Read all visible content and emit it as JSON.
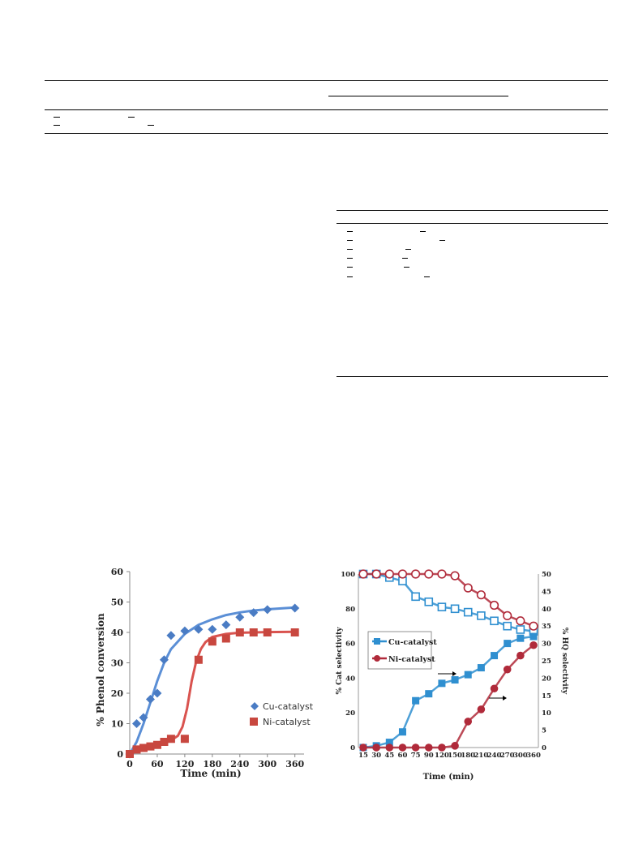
{
  "chart_data": [
    {
      "type": "scatter",
      "xlabel": "Time (min)",
      "ylabel": "% Phenol conversion",
      "xlim": [
        0,
        380
      ],
      "ylim": [
        0,
        60
      ],
      "x_ticks": [
        "0",
        "60",
        "120",
        "180",
        "240",
        "300",
        "360"
      ],
      "x_tick_values": [
        0,
        60,
        120,
        180,
        240,
        300,
        360
      ],
      "y_ticks": [
        "0",
        "10",
        "20",
        "30",
        "40",
        "50",
        "60"
      ],
      "y_tick_values": [
        0,
        10,
        20,
        30,
        40,
        50,
        60
      ],
      "legend_placement": "bottom-right",
      "series": [
        {
          "name": "Cu-catalyst",
          "marker": "diamond",
          "color": "#4a7cc4",
          "fit_color": "#5b8fd6",
          "x": [
            0,
            15,
            30,
            45,
            60,
            75,
            90,
            120,
            150,
            180,
            210,
            240,
            270,
            300,
            360
          ],
          "y": [
            0,
            10,
            12,
            18,
            20,
            31,
            39,
            40.5,
            41,
            41,
            42.5,
            45,
            46.5,
            47.5,
            48
          ],
          "fit": {
            "x": [
              0,
              15,
              30,
              45,
              60,
              75,
              90,
              120,
              150,
              180,
              210,
              240,
              270,
              300,
              330,
              360
            ],
            "y": [
              0,
              4,
              10,
              17,
              24,
              30,
              34.5,
              39.5,
              42.5,
              44.3,
              45.7,
              46.6,
              47.2,
              47.6,
              47.9,
              48.2
            ]
          }
        },
        {
          "name": "Ni-catalyst",
          "marker": "square",
          "color": "#c8473f",
          "fit_color": "#d9534f",
          "x": [
            0,
            15,
            30,
            45,
            60,
            75,
            90,
            120,
            150,
            180,
            210,
            240,
            270,
            300,
            360
          ],
          "y": [
            0,
            1.5,
            2,
            2.5,
            3,
            4,
            5,
            5,
            31,
            37,
            38,
            40,
            40,
            40,
            40
          ],
          "fit": {
            "x": [
              0,
              15,
              30,
              45,
              60,
              75,
              90,
              105,
              115,
              125,
              135,
              145,
              155,
              165,
              180,
              210,
              240,
              300,
              360
            ],
            "y": [
              0,
              1,
              1.8,
              2.3,
              2.8,
              3.5,
              4.5,
              6,
              9,
              15,
              24,
              30.5,
              34.5,
              36.8,
              38.5,
              39.5,
              39.9,
              40.1,
              40.2
            ]
          }
        }
      ]
    },
    {
      "type": "line",
      "xlabel": "Time (min)",
      "ylabel_left": "% Cat selectivity",
      "ylabel_right": "% HQ selectivity",
      "categories": [
        "15",
        "30",
        "45",
        "60",
        "75",
        "90",
        "120",
        "150",
        "180",
        "210",
        "240",
        "270",
        "300",
        "360"
      ],
      "ylim_left": [
        0,
        100
      ],
      "ylim_right": [
        0,
        50
      ],
      "y_ticks_left": [
        "0",
        "20",
        "40",
        "60",
        "80",
        "100"
      ],
      "y_tick_values_left": [
        0,
        20,
        40,
        60,
        80,
        100
      ],
      "y_ticks_right": [
        "0",
        "5",
        "10",
        "15",
        "20",
        "25",
        "30",
        "35",
        "40",
        "45",
        "50"
      ],
      "y_tick_values_right": [
        0,
        5,
        10,
        15,
        20,
        25,
        30,
        35,
        40,
        45,
        50
      ],
      "legend_placement": "center-left",
      "series": [
        {
          "name": "Cu-catalyst",
          "axis": "left",
          "marker": "square-open",
          "color": "#2f8fd0",
          "values": [
            100,
            100,
            98,
            96,
            87,
            84,
            81,
            80,
            78,
            76,
            73,
            70,
            68,
            67
          ]
        },
        {
          "name": "Cu-catalyst",
          "axis": "right",
          "marker": "square-filled",
          "color": "#2f8fd0",
          "values": [
            0,
            0.5,
            1.5,
            4.5,
            13.5,
            15.5,
            18.5,
            19.5,
            21,
            23,
            26.5,
            30,
            31.5,
            32
          ]
        },
        {
          "name": "Ni-catalyst",
          "axis": "left",
          "marker": "circle-open",
          "color": "#b02a3a",
          "values": [
            100,
            100,
            100,
            100,
            100,
            100,
            100,
            99,
            92,
            88,
            82,
            76,
            73,
            70
          ]
        },
        {
          "name": "Ni-catalyst",
          "axis": "right",
          "marker": "circle-filled",
          "color": "#b02a3a",
          "values": [
            0,
            0,
            0,
            0,
            0,
            0,
            0,
            0.5,
            7.5,
            11,
            17,
            22.5,
            26.5,
            29.5
          ]
        }
      ],
      "legend": [
        "Cu-catalyst",
        "Ni-catalyst"
      ]
    }
  ]
}
